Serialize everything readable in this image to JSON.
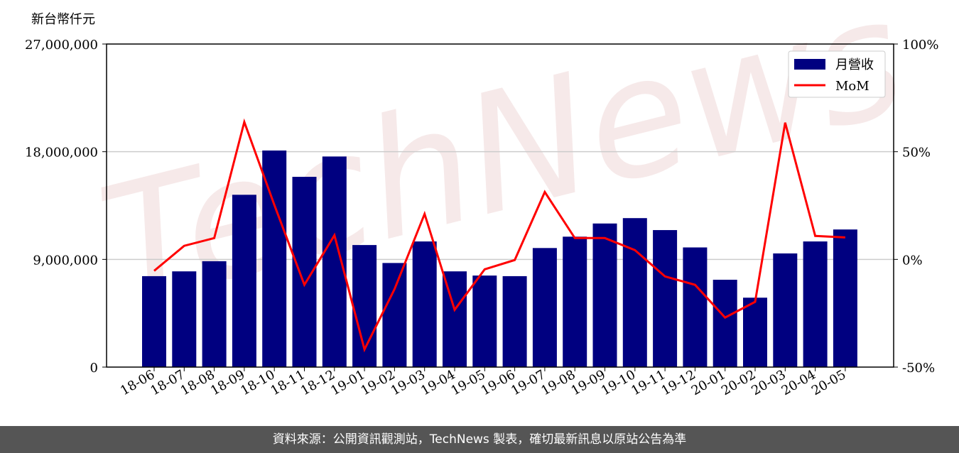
{
  "chart_data": {
    "type": "bar",
    "y_label": "新台幣仟元",
    "watermark": "TechNews",
    "footer": "資料來源：公開資訊觀測站，TechNews 製表，確切最新訊息以原站公告為準",
    "categories": [
      "18-06",
      "18-07",
      "18-08",
      "18-09",
      "18-10",
      "18-11",
      "18-12",
      "19-01",
      "19-02",
      "19-03",
      "19-04",
      "19-05",
      "19-06",
      "19-07",
      "19-08",
      "19-09",
      "19-10",
      "19-11",
      "19-12",
      "20-01",
      "20-02",
      "20-03",
      "20-04",
      "20-05"
    ],
    "series": [
      {
        "name": "月營收",
        "type": "bar",
        "color": "#000080",
        "values": [
          7600000,
          8000000,
          8850000,
          14400000,
          18100000,
          15900000,
          17600000,
          10200000,
          8700000,
          10500000,
          8000000,
          7650000,
          7600000,
          9950000,
          10900000,
          12000000,
          12450000,
          11450000,
          10000000,
          7300000,
          5800000,
          9500000,
          10500000,
          11500000
        ]
      },
      {
        "name": "MoM",
        "type": "line",
        "color": "#ff0000",
        "axis": "y2",
        "values": [
          -5.3,
          6.3,
          9.9,
          63.8,
          25.3,
          -11.8,
          11.2,
          -41.8,
          -13.8,
          21.1,
          -23.4,
          -4.6,
          -0.3,
          31.3,
          9.9,
          9.9,
          4.3,
          -7.9,
          -11.8,
          -27,
          -19.7,
          63.5,
          10.9,
          10.2
        ]
      }
    ],
    "ylim": [
      0,
      27000000
    ],
    "yticks": [
      0,
      {
        "value": 9000000,
        "label": "9,000,000"
      },
      {
        "value": 18000000,
        "label": "18,000,000"
      },
      {
        "value": 27000000,
        "label": "27,000,000"
      }
    ],
    "y2lim": [
      -50,
      100
    ],
    "y2ticks": [
      {
        "value": -50,
        "label": "-50%"
      },
      {
        "value": 0,
        "label": "0%"
      },
      {
        "value": 50,
        "label": "50%"
      },
      {
        "value": 100,
        "label": "100%"
      }
    ],
    "grid": true,
    "legend": "upper right"
  }
}
